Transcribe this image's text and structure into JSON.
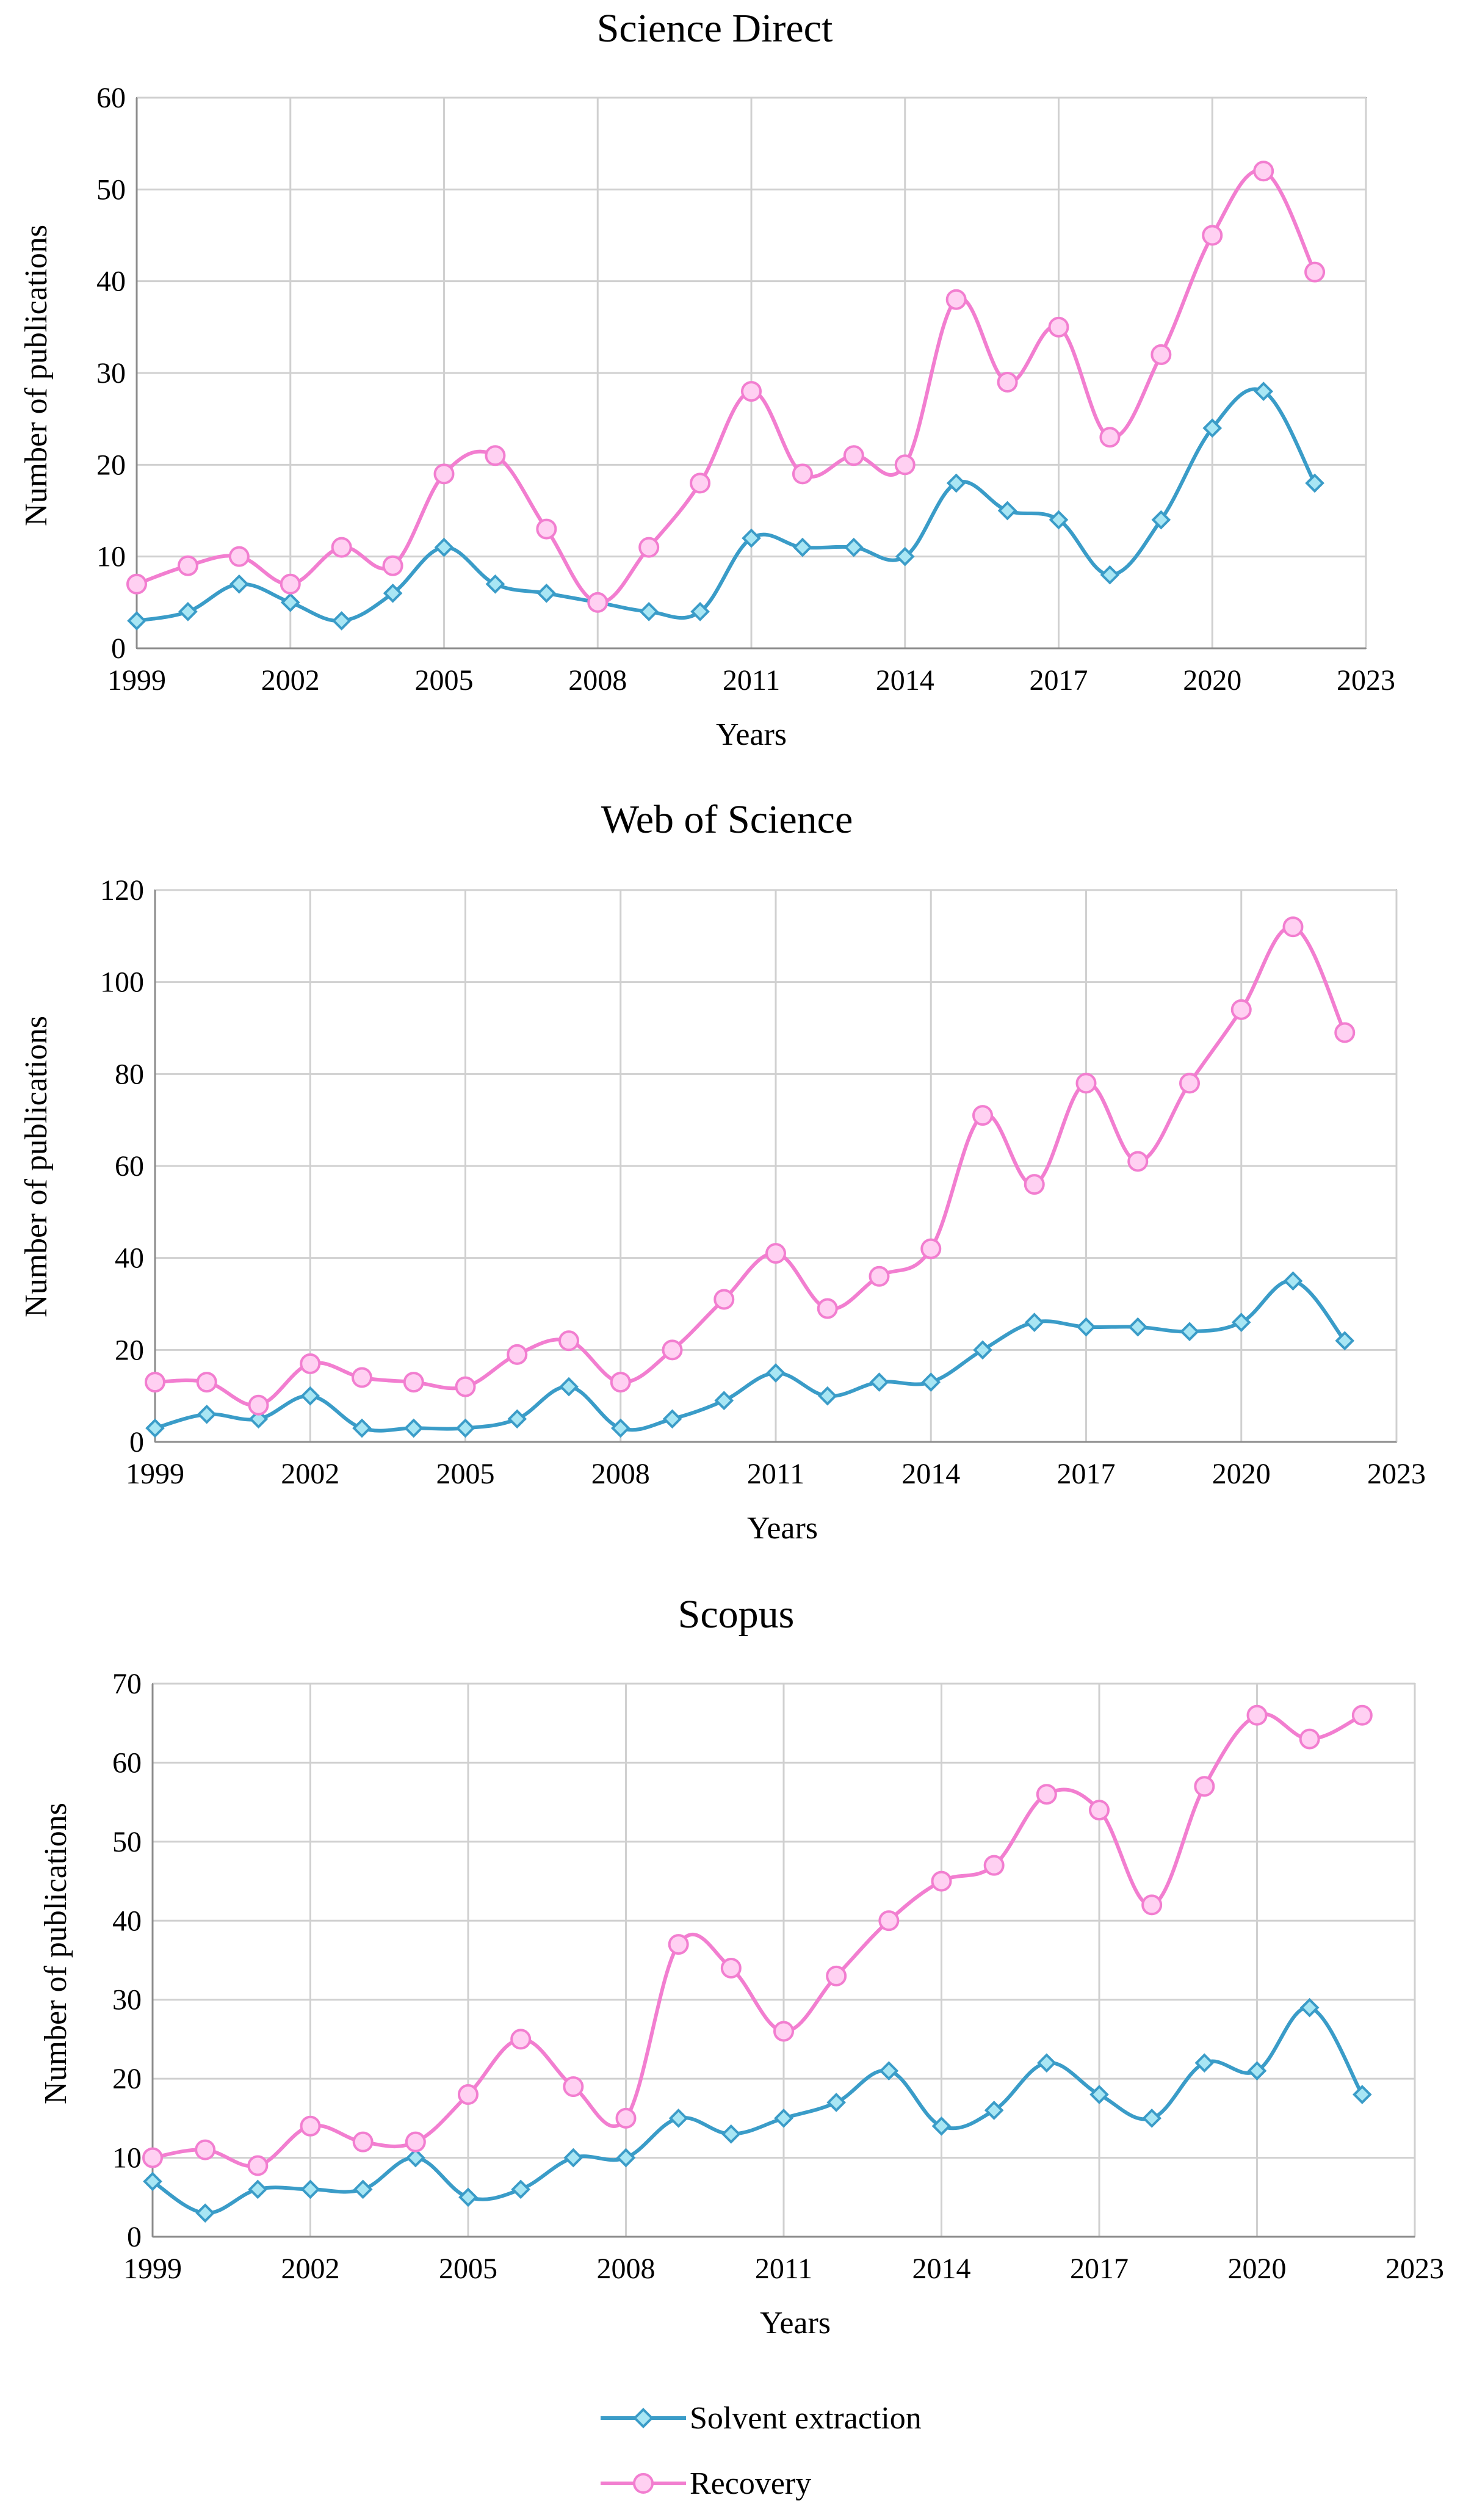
{
  "chart_data": [
    {
      "type": "line",
      "title": "Science Direct",
      "xlabel": "Years",
      "ylabel": "Number of publications",
      "xlim": [
        1999,
        2023
      ],
      "ylim": [
        0,
        60
      ],
      "xticks": [
        "1999",
        "2002",
        "2005",
        "2008",
        "2011",
        "2014",
        "2017",
        "2020",
        "2023"
      ],
      "yticks": [
        "0",
        "10",
        "20",
        "30",
        "40",
        "50",
        "60"
      ],
      "grid": true,
      "x": [
        1999,
        2000,
        2001,
        2002,
        2003,
        2004,
        2005,
        2006,
        2007,
        2008,
        2009,
        2010,
        2011,
        2012,
        2013,
        2014,
        2015,
        2016,
        2017,
        2018,
        2019,
        2020,
        2021,
        2022
      ],
      "series": [
        {
          "name": "Solvent extraction",
          "values": [
            3,
            4,
            7,
            5,
            3,
            6,
            11,
            7,
            6,
            5,
            4,
            4,
            12,
            11,
            11,
            10,
            18,
            15,
            14,
            8,
            14,
            24,
            28,
            18
          ]
        },
        {
          "name": "Recovery",
          "values": [
            7,
            9,
            10,
            7,
            11,
            9,
            19,
            21,
            13,
            5,
            11,
            18,
            28,
            19,
            21,
            20,
            38,
            29,
            35,
            23,
            32,
            45,
            52,
            41
          ]
        }
      ]
    },
    {
      "type": "line",
      "title": "Web of Science",
      "xlabel": "Years",
      "ylabel": "Number of publications",
      "xlim": [
        1999,
        2023
      ],
      "ylim": [
        0,
        120
      ],
      "xticks": [
        "1999",
        "2002",
        "2005",
        "2008",
        "2011",
        "2014",
        "2017",
        "2020",
        "2023"
      ],
      "yticks": [
        "0",
        "20",
        "40",
        "60",
        "80",
        "100",
        "120"
      ],
      "grid": true,
      "x": [
        1999,
        2000,
        2001,
        2002,
        2003,
        2004,
        2005,
        2006,
        2007,
        2008,
        2009,
        2010,
        2011,
        2012,
        2013,
        2014,
        2015,
        2016,
        2017,
        2018,
        2019,
        2020,
        2021,
        2022
      ],
      "series": [
        {
          "name": "Solvent extraction",
          "values": [
            3,
            6,
            5,
            10,
            3,
            3,
            3,
            5,
            12,
            3,
            5,
            9,
            15,
            10,
            13,
            13,
            20,
            26,
            25,
            25,
            24,
            26,
            35,
            22
          ]
        },
        {
          "name": "Recovery",
          "values": [
            13,
            13,
            8,
            17,
            14,
            13,
            12,
            19,
            22,
            13,
            20,
            31,
            41,
            29,
            36,
            42,
            71,
            56,
            78,
            61,
            78,
            94,
            112,
            89
          ]
        }
      ]
    },
    {
      "type": "line",
      "title": "Scopus",
      "xlabel": "Years",
      "ylabel": "Number of publications",
      "xlim": [
        1999,
        2023
      ],
      "ylim": [
        0,
        70
      ],
      "xticks": [
        "1999",
        "2002",
        "2005",
        "2008",
        "2011",
        "2014",
        "2017",
        "2020",
        "2023"
      ],
      "yticks": [
        "0",
        "10",
        "20",
        "30",
        "40",
        "50",
        "60",
        "70"
      ],
      "grid": true,
      "x": [
        1999,
        2000,
        2001,
        2002,
        2003,
        2004,
        2005,
        2006,
        2007,
        2008,
        2009,
        2010,
        2011,
        2012,
        2013,
        2014,
        2015,
        2016,
        2017,
        2018,
        2019,
        2020,
        2021,
        2022
      ],
      "series": [
        {
          "name": "Solvent extraction",
          "values": [
            7,
            3,
            6,
            6,
            6,
            10,
            5,
            6,
            10,
            10,
            15,
            13,
            15,
            17,
            21,
            14,
            16,
            22,
            18,
            15,
            22,
            21,
            29,
            18
          ]
        },
        {
          "name": "Recovery",
          "values": [
            10,
            11,
            9,
            14,
            12,
            12,
            18,
            25,
            19,
            15,
            37,
            34,
            26,
            33,
            40,
            45,
            47,
            56,
            54,
            42,
            57,
            66,
            63,
            66
          ]
        }
      ]
    }
  ],
  "legend": {
    "placement": "bottom-center",
    "items": [
      {
        "label": "Solvent extraction",
        "color": "#3A9CC8",
        "marker": "diamond"
      },
      {
        "label": "Recovery",
        "color": "#F27ED0",
        "marker": "circle"
      }
    ]
  },
  "colors": {
    "series_1": "#3A9CC8",
    "series_1_fill": "#A8E6F4",
    "series_2": "#F27ED0",
    "series_2_fill": "#FFD0F2",
    "grid": "#D0D0D0",
    "axis": "#8C8C8C"
  }
}
